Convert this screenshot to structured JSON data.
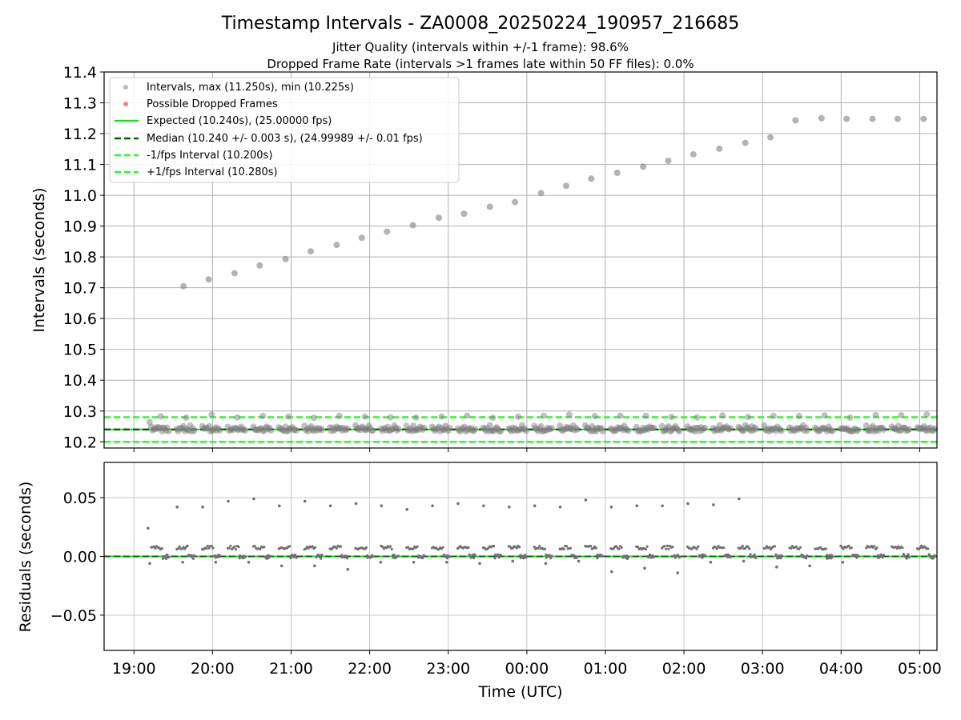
{
  "chart_data": [
    {
      "type": "scatter",
      "title": "Timestamp Intervals - ZA0008_20250224_190957_216685",
      "subtitle_lines": [
        "Jitter Quality (intervals within +/-1 frame): 98.6%",
        "Dropped Frame Rate (intervals >1 frames late within 50 FF files): 0.0%"
      ],
      "ylabel": "Intervals (seconds)",
      "ylim": [
        10.18,
        11.4
      ],
      "yticks": [
        "10.2",
        "10.3",
        "10.4",
        "10.5",
        "10.6",
        "10.7",
        "10.8",
        "10.9",
        "11.0",
        "11.1",
        "11.2",
        "11.3",
        "11.4"
      ],
      "grid": true,
      "legend_position": "top-left",
      "legend": [
        "Intervals, max (11.250s), min (10.225s)",
        "Possible Dropped Frames",
        "Expected (10.240s), (25.00000 fps)",
        "Median (10.240 +/- 0.003 s), (24.99989 +/- 0.01 fps)",
        "-1/fps Interval (10.200s)",
        "+1/fps Interval (10.280s)"
      ],
      "reference_lines": {
        "expected": 10.24,
        "median": 10.24,
        "minus_one": 10.2,
        "plus_one": 10.28
      },
      "colors": {
        "intervals": "#808080",
        "dropped": "#ff3b3b",
        "expected": "#00ee00",
        "median": "#006400",
        "bounds": "#22ff22"
      },
      "baseline_intervals": [
        10.24,
        10.24,
        10.24
      ],
      "spike_series": {
        "time_hours": [
          19.63,
          19.95,
          20.28,
          20.6,
          20.93,
          21.25,
          21.58,
          21.9,
          22.22,
          22.55,
          22.88,
          23.2,
          23.53,
          23.85,
          24.18,
          24.5,
          24.82,
          25.15,
          25.48,
          25.8,
          26.12,
          26.45,
          26.78,
          27.1,
          27.42,
          27.75,
          28.07,
          28.4,
          28.72,
          29.05
        ],
        "values": [
          10.705,
          10.727,
          10.747,
          10.772,
          10.793,
          10.818,
          10.839,
          10.862,
          10.882,
          10.903,
          10.927,
          10.94,
          10.963,
          10.978,
          11.007,
          11.031,
          11.054,
          11.073,
          11.093,
          11.112,
          11.133,
          11.151,
          11.17,
          11.188,
          11.243,
          11.25,
          11.248,
          11.248,
          11.248,
          11.248
        ]
      }
    },
    {
      "type": "scatter",
      "ylabel": "Residuals (seconds)",
      "xlabel": "Time (UTC)",
      "ylim": [
        -0.08,
        0.08
      ],
      "yticks": [
        "−0.05",
        "0.00",
        "0.05"
      ],
      "xlim_hours": [
        18.62,
        29.22
      ],
      "xticks": [
        "19:00",
        "20:00",
        "21:00",
        "22:00",
        "23:00",
        "00:00",
        "01:00",
        "02:00",
        "03:00",
        "04:00",
        "05:00"
      ],
      "grid": true,
      "spike_residuals": [
        0.042,
        0.042,
        0.047,
        0.049,
        0.043,
        0.047,
        0.043,
        0.045,
        0.043,
        0.04,
        0.043,
        0.045,
        0.043,
        0.042,
        0.043,
        0.042,
        0.048,
        0.042,
        0.043,
        0.043,
        0.045,
        0.044,
        0.049
      ],
      "low_residuals": [
        -0.006,
        -0.005,
        -0.005,
        -0.005,
        -0.008,
        -0.008,
        -0.011,
        -0.005,
        -0.005,
        -0.005,
        -0.006,
        -0.004,
        -0.006,
        -0.004,
        -0.013,
        -0.01,
        -0.014,
        -0.005,
        -0.004,
        -0.009,
        -0.008,
        -0.005
      ]
    }
  ]
}
